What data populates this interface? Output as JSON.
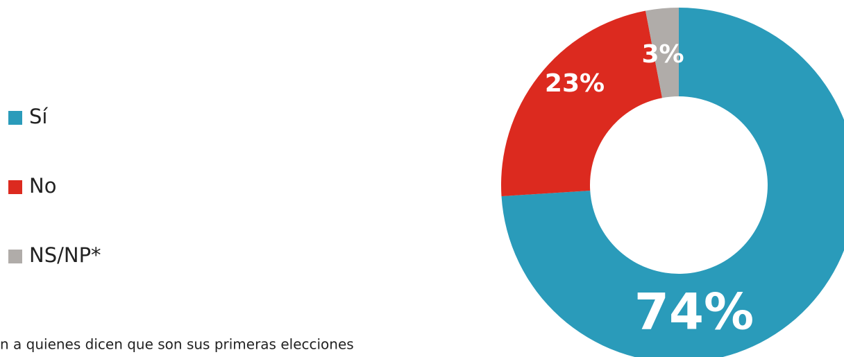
{
  "chart_data": {
    "type": "donut",
    "categories": [
      "Sí",
      "No",
      "NS/NP*"
    ],
    "values": [
      74,
      23,
      3
    ],
    "value_labels": [
      "74%",
      "23%",
      "3%"
    ],
    "colors": [
      "#2a9bba",
      "#dc2a1f",
      "#b0aca9"
    ],
    "legend": "left",
    "note": "n a quienes dicen que son sus primeras elecciones"
  }
}
